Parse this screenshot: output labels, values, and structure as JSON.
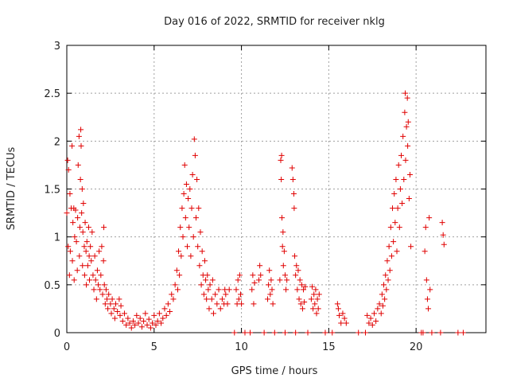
{
  "chart_data": {
    "type": "scatter",
    "title": "Day 016 of 2022, SRMTID for receiver nklg",
    "xlabel": "GPS time / hours",
    "ylabel": "SRMTID / TECUs",
    "xlim": [
      0,
      24
    ],
    "ylim": [
      0,
      3
    ],
    "xticks": [
      0,
      5,
      10,
      15,
      20
    ],
    "xtick_labels": [
      "0",
      "5",
      "10",
      "15",
      "20"
    ],
    "yticks": [
      0,
      0.5,
      1,
      1.5,
      2,
      2.5,
      3
    ],
    "ytick_labels": [
      "0",
      "0.5",
      "1",
      "1.5",
      "2",
      "2.5",
      "3"
    ],
    "grid": true,
    "color": "#e00000",
    "series": [
      {
        "name": "SRMTID",
        "marker": "plus",
        "points": [
          [
            0.0,
            1.25
          ],
          [
            0.05,
            1.8
          ],
          [
            0.08,
            0.9
          ],
          [
            0.1,
            1.7
          ],
          [
            0.15,
            0.6
          ],
          [
            0.18,
            1.45
          ],
          [
            0.2,
            0.85
          ],
          [
            0.25,
            1.3
          ],
          [
            0.3,
            1.95
          ],
          [
            0.32,
            0.75
          ],
          [
            0.35,
            1.15
          ],
          [
            0.4,
            1.3
          ],
          [
            0.42,
            0.55
          ],
          [
            0.45,
            1.0
          ],
          [
            0.5,
            1.28
          ],
          [
            0.55,
            0.95
          ],
          [
            0.6,
            0.65
          ],
          [
            0.62,
            1.2
          ],
          [
            0.65,
            1.75
          ],
          [
            0.7,
            2.05
          ],
          [
            0.72,
            0.8
          ],
          [
            0.75,
            1.1
          ],
          [
            0.78,
            1.6
          ],
          [
            0.8,
            2.12
          ],
          [
            0.82,
            1.95
          ],
          [
            0.85,
            1.25
          ],
          [
            0.88,
            1.5
          ],
          [
            0.9,
            0.7
          ],
          [
            0.92,
            1.05
          ],
          [
            0.95,
            1.35
          ],
          [
            1.0,
            0.9
          ],
          [
            1.02,
            0.6
          ],
          [
            1.05,
            1.15
          ],
          [
            1.1,
            0.85
          ],
          [
            1.12,
            0.5
          ],
          [
            1.15,
            0.95
          ],
          [
            1.2,
            0.7
          ],
          [
            1.25,
            1.1
          ],
          [
            1.28,
            0.8
          ],
          [
            1.3,
            0.55
          ],
          [
            1.35,
            0.9
          ],
          [
            1.4,
            0.75
          ],
          [
            1.45,
            1.05
          ],
          [
            1.5,
            0.6
          ],
          [
            1.55,
            0.45
          ],
          [
            1.6,
            0.8
          ],
          [
            1.65,
            0.55
          ],
          [
            1.7,
            0.35
          ],
          [
            1.75,
            0.65
          ],
          [
            1.8,
            0.5
          ],
          [
            1.85,
            0.85
          ],
          [
            1.9,
            0.45
          ],
          [
            1.95,
            0.6
          ],
          [
            2.0,
            0.9
          ],
          [
            2.05,
            0.4
          ],
          [
            2.1,
            0.75
          ],
          [
            2.12,
            1.1
          ],
          [
            2.15,
            0.5
          ],
          [
            2.2,
            0.3
          ],
          [
            2.25,
            0.45
          ],
          [
            2.3,
            0.35
          ],
          [
            2.35,
            0.25
          ],
          [
            2.4,
            0.4
          ],
          [
            2.5,
            0.3
          ],
          [
            2.55,
            0.2
          ],
          [
            2.6,
            0.35
          ],
          [
            2.7,
            0.25
          ],
          [
            2.75,
            0.15
          ],
          [
            2.8,
            0.3
          ],
          [
            2.9,
            0.22
          ],
          [
            3.0,
            0.35
          ],
          [
            3.05,
            0.18
          ],
          [
            3.1,
            0.28
          ],
          [
            3.2,
            0.12
          ],
          [
            3.3,
            0.2
          ],
          [
            3.4,
            0.08
          ],
          [
            3.5,
            0.15
          ],
          [
            3.6,
            0.1
          ],
          [
            3.7,
            0.05
          ],
          [
            3.8,
            0.12
          ],
          [
            3.9,
            0.08
          ],
          [
            4.0,
            0.18
          ],
          [
            4.1,
            0.1
          ],
          [
            4.2,
            0.15
          ],
          [
            4.3,
            0.06
          ],
          [
            4.4,
            0.12
          ],
          [
            4.5,
            0.2
          ],
          [
            4.6,
            0.08
          ],
          [
            4.7,
            0.14
          ],
          [
            4.8,
            0.05
          ],
          [
            4.9,
            0.1
          ],
          [
            5.0,
            0.18
          ],
          [
            5.1,
            0.08
          ],
          [
            5.2,
            0.12
          ],
          [
            5.3,
            0.2
          ],
          [
            5.4,
            0.1
          ],
          [
            5.5,
            0.15
          ],
          [
            5.6,
            0.25
          ],
          [
            5.7,
            0.18
          ],
          [
            5.8,
            0.3
          ],
          [
            5.9,
            0.22
          ],
          [
            6.0,
            0.4
          ],
          [
            6.1,
            0.35
          ],
          [
            6.2,
            0.5
          ],
          [
            6.3,
            0.65
          ],
          [
            6.35,
            0.45
          ],
          [
            6.4,
            0.85
          ],
          [
            6.45,
            0.6
          ],
          [
            6.5,
            1.1
          ],
          [
            6.55,
            0.8
          ],
          [
            6.6,
            1.3
          ],
          [
            6.65,
            1.0
          ],
          [
            6.7,
            1.45
          ],
          [
            6.75,
            1.75
          ],
          [
            6.8,
            1.2
          ],
          [
            6.85,
            1.55
          ],
          [
            6.9,
            0.9
          ],
          [
            6.95,
            1.4
          ],
          [
            7.0,
            1.1
          ],
          [
            7.05,
            1.5
          ],
          [
            7.1,
            0.8
          ],
          [
            7.15,
            1.3
          ],
          [
            7.2,
            1.65
          ],
          [
            7.25,
            1.0
          ],
          [
            7.3,
            2.02
          ],
          [
            7.35,
            1.85
          ],
          [
            7.4,
            1.2
          ],
          [
            7.45,
            1.6
          ],
          [
            7.5,
            0.9
          ],
          [
            7.55,
            1.3
          ],
          [
            7.6,
            0.7
          ],
          [
            7.65,
            1.05
          ],
          [
            7.7,
            0.5
          ],
          [
            7.75,
            0.85
          ],
          [
            7.8,
            0.6
          ],
          [
            7.85,
            0.4
          ],
          [
            7.9,
            0.75
          ],
          [
            7.95,
            0.55
          ],
          [
            8.0,
            0.35
          ],
          [
            8.05,
            0.6
          ],
          [
            8.1,
            0.45
          ],
          [
            8.15,
            0.25
          ],
          [
            8.2,
            0.5
          ],
          [
            8.3,
            0.35
          ],
          [
            8.35,
            0.55
          ],
          [
            8.4,
            0.2
          ],
          [
            8.5,
            0.4
          ],
          [
            8.6,
            0.3
          ],
          [
            8.7,
            0.45
          ],
          [
            8.8,
            0.25
          ],
          [
            8.9,
            0.35
          ],
          [
            9.0,
            0.3
          ],
          [
            9.05,
            0.45
          ],
          [
            9.1,
            0.4
          ],
          [
            9.2,
            0.3
          ],
          [
            9.3,
            0.45
          ],
          [
            9.7,
            0.45
          ],
          [
            9.75,
            0.3
          ],
          [
            9.8,
            0.55
          ],
          [
            9.85,
            0.35
          ],
          [
            9.9,
            0.6
          ],
          [
            9.95,
            0.4
          ],
          [
            10.0,
            0.3
          ],
          [
            10.6,
            0.45
          ],
          [
            10.65,
            0.6
          ],
          [
            10.7,
            0.3
          ],
          [
            10.75,
            0.52
          ],
          [
            11.0,
            0.55
          ],
          [
            11.05,
            0.7
          ],
          [
            11.1,
            0.6
          ],
          [
            11.5,
            0.35
          ],
          [
            11.55,
            0.5
          ],
          [
            11.6,
            0.65
          ],
          [
            11.65,
            0.4
          ],
          [
            11.7,
            0.55
          ],
          [
            11.75,
            0.45
          ],
          [
            11.8,
            0.3
          ],
          [
            12.2,
            0.55
          ],
          [
            12.25,
            1.8
          ],
          [
            12.28,
            1.6
          ],
          [
            12.3,
            1.85
          ],
          [
            12.32,
            1.2
          ],
          [
            12.35,
            0.9
          ],
          [
            12.38,
            1.05
          ],
          [
            12.4,
            0.7
          ],
          [
            12.45,
            0.85
          ],
          [
            12.5,
            0.6
          ],
          [
            12.55,
            0.45
          ],
          [
            12.6,
            0.55
          ],
          [
            12.9,
            1.72
          ],
          [
            12.95,
            1.6
          ],
          [
            13.0,
            1.45
          ],
          [
            13.02,
            1.3
          ],
          [
            13.05,
            0.8
          ],
          [
            13.1,
            0.6
          ],
          [
            13.15,
            0.7
          ],
          [
            13.2,
            0.45
          ],
          [
            13.25,
            0.65
          ],
          [
            13.3,
            0.35
          ],
          [
            13.35,
            0.55
          ],
          [
            13.4,
            0.3
          ],
          [
            13.45,
            0.5
          ],
          [
            13.5,
            0.25
          ],
          [
            13.55,
            0.45
          ],
          [
            13.6,
            0.32
          ],
          [
            13.65,
            0.48
          ],
          [
            14.0,
            0.35
          ],
          [
            14.05,
            0.48
          ],
          [
            14.1,
            0.25
          ],
          [
            14.15,
            0.4
          ],
          [
            14.2,
            0.3
          ],
          [
            14.25,
            0.45
          ],
          [
            14.3,
            0.2
          ],
          [
            14.35,
            0.35
          ],
          [
            14.4,
            0.25
          ],
          [
            14.45,
            0.4
          ],
          [
            15.5,
            0.3
          ],
          [
            15.55,
            0.25
          ],
          [
            15.6,
            0.18
          ],
          [
            15.7,
            0.1
          ],
          [
            15.8,
            0.2
          ],
          [
            15.9,
            0.15
          ],
          [
            16.0,
            0.1
          ],
          [
            17.2,
            0.18
          ],
          [
            17.3,
            0.1
          ],
          [
            17.4,
            0.15
          ],
          [
            17.5,
            0.08
          ],
          [
            17.6,
            0.2
          ],
          [
            17.7,
            0.12
          ],
          [
            17.8,
            0.25
          ],
          [
            17.9,
            0.3
          ],
          [
            18.0,
            0.2
          ],
          [
            18.05,
            0.4
          ],
          [
            18.1,
            0.28
          ],
          [
            18.15,
            0.5
          ],
          [
            18.2,
            0.35
          ],
          [
            18.25,
            0.6
          ],
          [
            18.3,
            0.45
          ],
          [
            18.35,
            0.75
          ],
          [
            18.4,
            0.55
          ],
          [
            18.45,
            0.9
          ],
          [
            18.5,
            0.65
          ],
          [
            18.55,
            1.1
          ],
          [
            18.6,
            0.8
          ],
          [
            18.65,
            1.3
          ],
          [
            18.7,
            0.95
          ],
          [
            18.75,
            1.45
          ],
          [
            18.8,
            1.15
          ],
          [
            18.85,
            1.6
          ],
          [
            18.9,
            0.85
          ],
          [
            18.95,
            1.3
          ],
          [
            19.0,
            1.75
          ],
          [
            19.05,
            1.1
          ],
          [
            19.1,
            1.5
          ],
          [
            19.15,
            1.85
          ],
          [
            19.2,
            1.35
          ],
          [
            19.25,
            2.05
          ],
          [
            19.3,
            1.6
          ],
          [
            19.35,
            2.3
          ],
          [
            19.38,
            2.5
          ],
          [
            19.4,
            1.8
          ],
          [
            19.45,
            2.15
          ],
          [
            19.5,
            2.45
          ],
          [
            19.52,
            1.95
          ],
          [
            19.55,
            2.2
          ],
          [
            19.6,
            1.4
          ],
          [
            19.65,
            1.65
          ],
          [
            19.7,
            0.9
          ],
          [
            20.5,
            0.85
          ],
          [
            20.55,
            1.1
          ],
          [
            20.6,
            0.55
          ],
          [
            20.65,
            0.35
          ],
          [
            20.7,
            0.25
          ],
          [
            20.75,
            1.2
          ],
          [
            20.8,
            0.45
          ],
          [
            21.5,
            1.15
          ],
          [
            21.55,
            1.02
          ],
          [
            21.6,
            0.92
          ],
          [
            9.6,
            0
          ],
          [
            10.2,
            0
          ],
          [
            10.5,
            0
          ],
          [
            11.3,
            0
          ],
          [
            11.9,
            0
          ],
          [
            12.5,
            0
          ],
          [
            13.1,
            0
          ],
          [
            13.8,
            0
          ],
          [
            14.8,
            0
          ],
          [
            15.2,
            0
          ],
          [
            16.7,
            0
          ],
          [
            17.1,
            0
          ],
          [
            20.3,
            0
          ],
          [
            20.4,
            0
          ],
          [
            20.9,
            0
          ],
          [
            21.4,
            0
          ],
          [
            22.4,
            0
          ],
          [
            22.7,
            0
          ]
        ]
      }
    ]
  }
}
